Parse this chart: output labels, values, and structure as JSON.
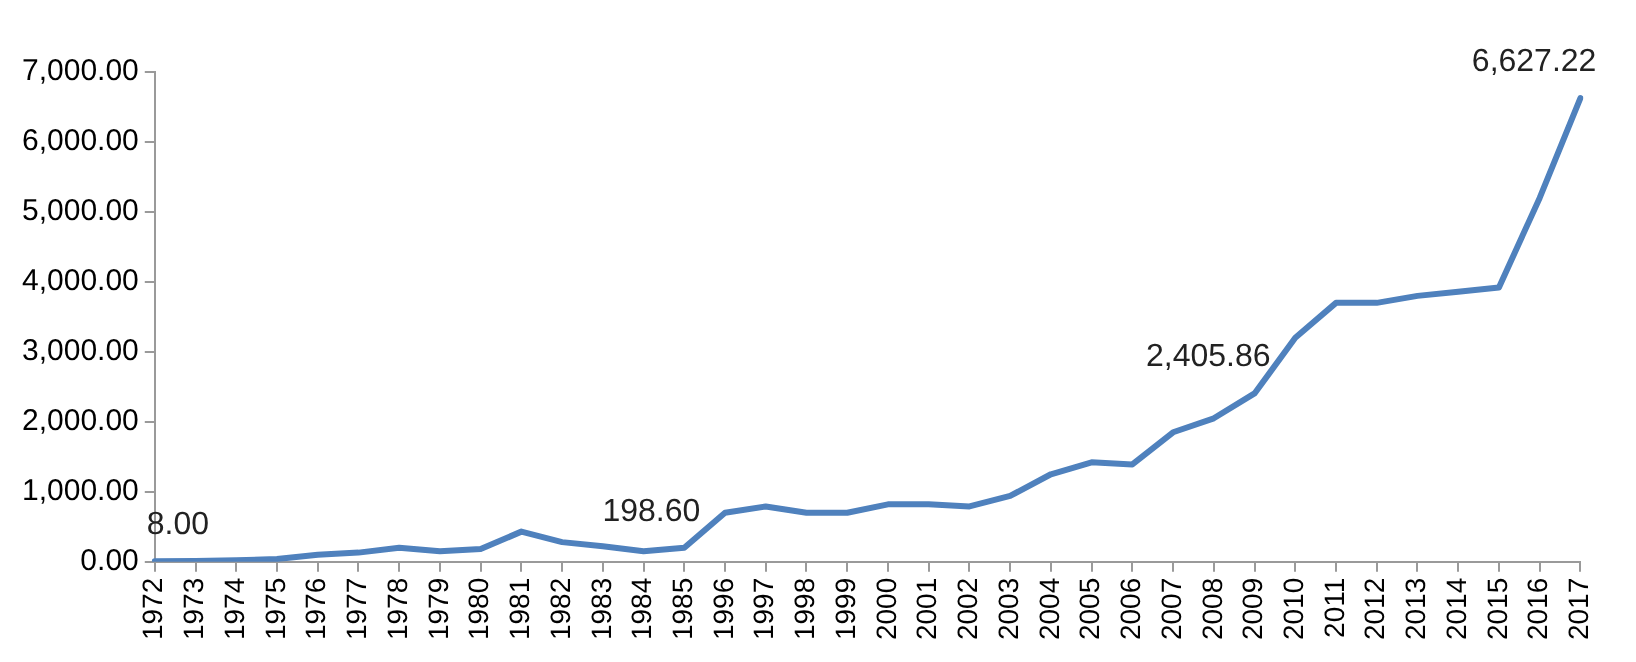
{
  "chart_data": {
    "type": "line",
    "categories": [
      "1972",
      "1973",
      "1974",
      "1975",
      "1976",
      "1977",
      "1978",
      "1979",
      "1980",
      "1981",
      "1982",
      "1983",
      "1984",
      "1985",
      "1996",
      "1997",
      "1998",
      "1999",
      "2000",
      "2001",
      "2002",
      "2003",
      "2004",
      "2005",
      "2006",
      "2007",
      "2008",
      "2009",
      "2010",
      "2011",
      "2012",
      "2013",
      "2014",
      "2015",
      "2016",
      "2017"
    ],
    "series": [
      {
        "color": "#4f81bd",
        "values": [
          8,
          10,
          20,
          40,
          100,
          130,
          200,
          150,
          180,
          430,
          280,
          220,
          150,
          198.6,
          700,
          790,
          700,
          700,
          820,
          820,
          790,
          940,
          1250,
          1420,
          1390,
          1850,
          2050,
          2405.86,
          3200,
          3700,
          3700,
          3800,
          3860,
          3920,
          5200,
          6627.22
        ],
        "value_labels": [
          "8.00",
          null,
          null,
          null,
          null,
          null,
          null,
          null,
          null,
          null,
          null,
          null,
          null,
          "198.60",
          null,
          null,
          null,
          null,
          null,
          null,
          null,
          null,
          null,
          null,
          null,
          null,
          null,
          "2,405.86",
          null,
          null,
          null,
          null,
          null,
          null,
          null,
          "6,627.22"
        ]
      }
    ],
    "ylim": [
      0,
      7000
    ],
    "yticks": [
      {
        "value": 0,
        "label": "0.00"
      },
      {
        "value": 1000,
        "label": "1,000.00"
      },
      {
        "value": 2000,
        "label": "2,000.00"
      },
      {
        "value": 3000,
        "label": "3,000.00"
      },
      {
        "value": 4000,
        "label": "4,000.00"
      },
      {
        "value": 5000,
        "label": "5,000.00"
      },
      {
        "value": 6000,
        "label": "6,000.00"
      },
      {
        "value": 7000,
        "label": "7,000.00"
      }
    ],
    "grid": false,
    "legend": false,
    "marker": "none",
    "line_style": "solid"
  }
}
